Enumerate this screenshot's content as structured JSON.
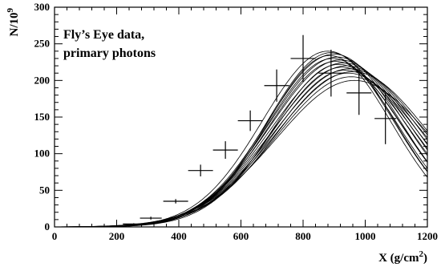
{
  "chart_data": {
    "type": "scatter",
    "title": "",
    "annotation_lines": [
      "Fly’s Eye data,",
      "primary photons"
    ],
    "xlabel": {
      "main": "X (g/cm",
      "sup": "2",
      "close": ")"
    },
    "ylabel": {
      "main": "N/10",
      "sup": "9"
    },
    "xlim": [
      0,
      1200
    ],
    "ylim": [
      0,
      300
    ],
    "x_ticks": [
      "0",
      "200",
      "400",
      "600",
      "800",
      "1000",
      "1200"
    ],
    "y_ticks": [
      "0",
      "50",
      "100",
      "150",
      "200",
      "250",
      "300"
    ],
    "grid": false,
    "legend": "none",
    "data_points": [
      {
        "x": 255,
        "y": 4,
        "xerr": 35,
        "yerr": 1
      },
      {
        "x": 310,
        "y": 12,
        "xerr": 35,
        "yerr": 2
      },
      {
        "x": 390,
        "y": 35,
        "xerr": 40,
        "yerr": 3
      },
      {
        "x": 470,
        "y": 77,
        "xerr": 40,
        "yerr": 8
      },
      {
        "x": 550,
        "y": 105,
        "xerr": 40,
        "yerr": 12
      },
      {
        "x": 630,
        "y": 145,
        "xerr": 40,
        "yerr": 14
      },
      {
        "x": 715,
        "y": 193,
        "xerr": 40,
        "yerr": 22
      },
      {
        "x": 800,
        "y": 230,
        "xerr": 40,
        "yerr": 32
      },
      {
        "x": 890,
        "y": 210,
        "xerr": 40,
        "yerr": 32
      },
      {
        "x": 980,
        "y": 183,
        "xerr": 40,
        "yerr": 30
      },
      {
        "x": 1065,
        "y": 148,
        "xerr": 35,
        "yerr": 35
      }
    ],
    "curve_params": [
      {
        "nmax": 240,
        "xmax": 880,
        "w": 210
      },
      {
        "nmax": 238,
        "xmax": 890,
        "w": 205
      },
      {
        "nmax": 236,
        "xmax": 900,
        "w": 215
      },
      {
        "nmax": 234,
        "xmax": 885,
        "w": 200
      },
      {
        "nmax": 232,
        "xmax": 910,
        "w": 220
      },
      {
        "nmax": 230,
        "xmax": 895,
        "w": 210
      },
      {
        "nmax": 228,
        "xmax": 920,
        "w": 225
      },
      {
        "nmax": 226,
        "xmax": 905,
        "w": 215
      },
      {
        "nmax": 224,
        "xmax": 930,
        "w": 230
      },
      {
        "nmax": 222,
        "xmax": 915,
        "w": 210
      },
      {
        "nmax": 220,
        "xmax": 940,
        "w": 235
      },
      {
        "nmax": 218,
        "xmax": 925,
        "w": 220
      },
      {
        "nmax": 216,
        "xmax": 950,
        "w": 240
      },
      {
        "nmax": 214,
        "xmax": 935,
        "w": 225
      },
      {
        "nmax": 212,
        "xmax": 960,
        "w": 245
      },
      {
        "nmax": 210,
        "xmax": 945,
        "w": 230
      },
      {
        "nmax": 205,
        "xmax": 955,
        "w": 240
      },
      {
        "nmax": 200,
        "xmax": 965,
        "w": 250
      }
    ]
  }
}
